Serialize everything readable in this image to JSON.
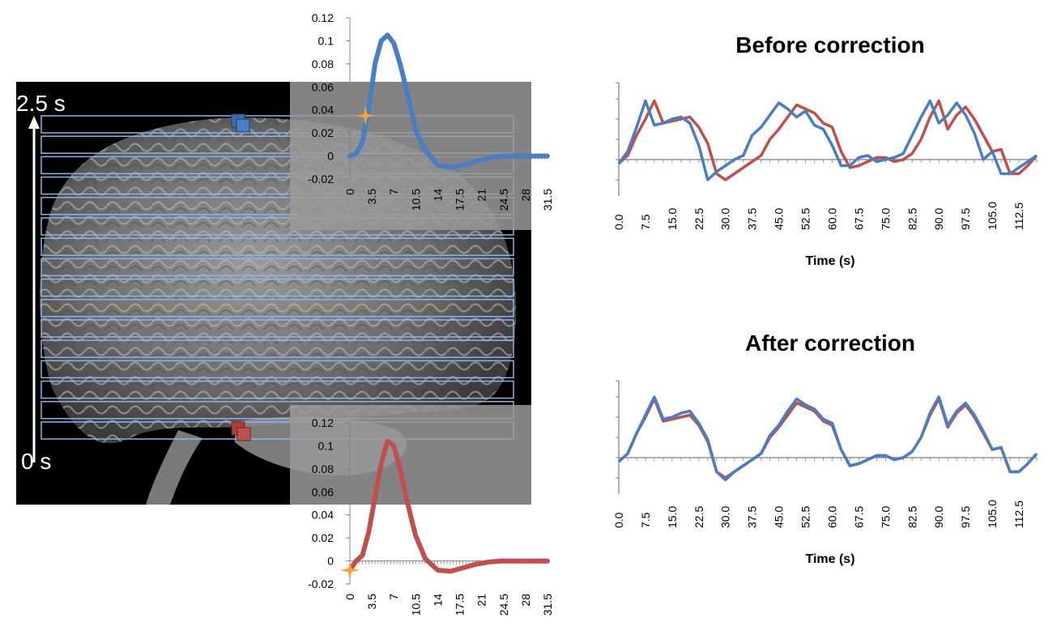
{
  "time_axis_labels": {
    "top": "2.5 s",
    "bottom": "0 s"
  },
  "colors": {
    "blue": "#4a7ec0",
    "red": "#c0504d",
    "star": "#f5a33a",
    "box_stroke": "#8fb3e8",
    "axis": "#808080"
  },
  "chart_data": [
    {
      "id": "hrf-top",
      "type": "line",
      "series": [
        {
          "color": "#4a7ec0",
          "x": [
            0,
            1,
            2,
            3,
            3.5,
            4,
            5,
            6,
            7,
            8,
            9,
            10,
            10.5,
            12,
            14,
            16,
            18,
            20,
            22,
            24,
            26,
            28,
            30,
            31.5
          ],
          "y": [
            0,
            0.002,
            0.012,
            0.04,
            0.06,
            0.08,
            0.1,
            0.105,
            0.098,
            0.08,
            0.058,
            0.035,
            0.022,
            0.005,
            -0.008,
            -0.01,
            -0.008,
            -0.005,
            -0.002,
            0,
            0,
            0,
            0,
            0
          ]
        }
      ],
      "yticks": [
        "0.12",
        "0.1",
        "0.08",
        "0.06",
        "0.04",
        "0.02",
        "0",
        "-0.02"
      ],
      "xticks": [
        "0",
        "3.5",
        "7",
        "10.5",
        "14",
        "17.5",
        "21",
        "24.5",
        "28",
        "31.5"
      ],
      "ylim": [
        -0.02,
        0.12
      ],
      "xlim": [
        0,
        31.5
      ],
      "marker": {
        "shape": "star",
        "x": 2.5,
        "y": 0.035
      }
    },
    {
      "id": "hrf-bottom",
      "type": "line",
      "series": [
        {
          "color": "#c0504d",
          "x": [
            0,
            1,
            2,
            3,
            4,
            5,
            6,
            7,
            8,
            9,
            10,
            10.5,
            12,
            14,
            16,
            18,
            20,
            22,
            24,
            26,
            28,
            30,
            31.5
          ],
          "y": [
            -0.008,
            0,
            0.005,
            0.025,
            0.055,
            0.085,
            0.104,
            0.1,
            0.08,
            0.055,
            0.032,
            0.022,
            0.002,
            -0.008,
            -0.009,
            -0.006,
            -0.003,
            -0.001,
            0,
            0,
            0,
            0,
            0
          ]
        }
      ],
      "yticks": [
        "0.12",
        "0.1",
        "0.08",
        "0.06",
        "0.04",
        "0.02",
        "0",
        "-0.02"
      ],
      "xticks": [
        "0",
        "3.5",
        "7",
        "10.5",
        "14",
        "17.5",
        "21",
        "24.5",
        "28",
        "31.5"
      ],
      "ylim": [
        -0.02,
        0.12
      ],
      "xlim": [
        0,
        31.5
      ],
      "marker": {
        "shape": "star",
        "x": 0,
        "y": -0.008
      }
    },
    {
      "id": "before",
      "type": "line",
      "title": "Before correction",
      "xlabel": "Time (s)",
      "categories": [
        "0.0",
        "7.5",
        "15.0",
        "22.5",
        "30.0",
        "37.5",
        "45.0",
        "52.5",
        "60.0",
        "67.5",
        "75.0",
        "82.5",
        "90.0",
        "97.5",
        "105.0",
        "112.5"
      ],
      "xlim": [
        0,
        117.5
      ],
      "ylim": [
        -1.8,
        3.8
      ],
      "series": [
        {
          "color": "#c0504d",
          "x": [
            0,
            2.5,
            5,
            7.5,
            10,
            12.5,
            15,
            17.5,
            20,
            22.5,
            25,
            27.5,
            30,
            32.5,
            35,
            37.5,
            40,
            42.5,
            45,
            47.5,
            50,
            52.5,
            55,
            57.5,
            60,
            62.5,
            65,
            67.5,
            70,
            72.5,
            75,
            77.5,
            80,
            82.5,
            85,
            87.5,
            90,
            92.5,
            95,
            97.5,
            100,
            102.5,
            105,
            107.5,
            110,
            112.5,
            115,
            117.5
          ],
          "y": [
            -0.2,
            0.2,
            1.2,
            2.0,
            2.9,
            1.8,
            1.9,
            2.0,
            2.1,
            1.6,
            0.8,
            -0.7,
            -1.0,
            -0.7,
            -0.4,
            -0.1,
            0.2,
            1.0,
            1.5,
            2.1,
            2.7,
            2.5,
            2.3,
            1.8,
            1.6,
            0.4,
            -0.4,
            -0.3,
            -0.1,
            0.1,
            0.1,
            -0.1,
            0.0,
            0.3,
            1.0,
            2.1,
            2.9,
            1.5,
            2.2,
            2.6,
            2.0,
            1.2,
            0.4,
            0.5,
            -0.7,
            -0.7,
            -0.3,
            0.2
          ]
        },
        {
          "color": "#4a7ec0",
          "x": [
            0,
            2.5,
            5,
            7.5,
            10,
            12.5,
            15,
            17.5,
            20,
            22.5,
            25,
            27.5,
            30,
            32.5,
            35,
            37.5,
            40,
            42.5,
            45,
            47.5,
            50,
            52.5,
            55,
            57.5,
            60,
            62.5,
            65,
            67.5,
            70,
            72.5,
            75,
            77.5,
            80,
            82.5,
            85,
            87.5,
            90,
            92.5,
            95,
            97.5,
            100,
            102.5,
            105,
            107.5,
            110,
            112.5,
            115,
            117.5
          ],
          "y": [
            -0.2,
            0.4,
            1.6,
            2.9,
            1.7,
            1.8,
            2.0,
            2.1,
            1.8,
            0.7,
            -1.0,
            -0.6,
            -0.3,
            0.0,
            0.2,
            1.2,
            1.6,
            2.2,
            2.8,
            2.5,
            2.1,
            2.4,
            1.7,
            1.5,
            0.7,
            -0.3,
            -0.3,
            0.1,
            0.2,
            -0.1,
            0.0,
            0.1,
            0.3,
            1.2,
            2.1,
            2.9,
            1.8,
            2.2,
            2.8,
            2.2,
            1.3,
            0.0,
            0.4,
            -0.7,
            -0.7,
            -0.4,
            -0.1,
            0.2
          ]
        }
      ]
    },
    {
      "id": "after",
      "type": "line",
      "title": "After correction",
      "xlabel": "Time (s)",
      "categories": [
        "0.0",
        "7.5",
        "15.0",
        "22.5",
        "30.0",
        "37.5",
        "45.0",
        "52.5",
        "60.0",
        "67.5",
        "75.0",
        "82.5",
        "90.0",
        "97.5",
        "105.0",
        "112.5"
      ],
      "xlim": [
        0,
        117.5
      ],
      "ylim": [
        -1.8,
        3.8
      ],
      "series": [
        {
          "color": "#c0504d",
          "x": [
            0,
            2.5,
            5,
            7.5,
            10,
            12.5,
            15,
            17.5,
            20,
            22.5,
            25,
            27.5,
            30,
            32.5,
            35,
            37.5,
            40,
            42.5,
            45,
            47.5,
            50,
            52.5,
            55,
            57.5,
            60,
            62.5,
            65,
            67.5,
            70,
            72.5,
            75,
            77.5,
            80,
            82.5,
            85,
            87.5,
            90,
            92.5,
            95,
            97.5,
            100,
            102.5,
            105,
            107.5,
            110,
            112.5,
            115,
            117.5
          ],
          "y": [
            -0.2,
            0.2,
            1.2,
            2.0,
            2.9,
            1.8,
            1.9,
            2.0,
            2.1,
            1.6,
            0.8,
            -0.7,
            -1.0,
            -0.7,
            -0.4,
            -0.1,
            0.2,
            1.0,
            1.5,
            2.1,
            2.7,
            2.5,
            2.3,
            1.8,
            1.6,
            0.4,
            -0.4,
            -0.3,
            -0.1,
            0.1,
            0.1,
            -0.1,
            0.0,
            0.3,
            1.0,
            2.1,
            2.9,
            1.5,
            2.2,
            2.6,
            2.0,
            1.2,
            0.4,
            0.5,
            -0.7,
            -0.7,
            -0.3,
            0.2
          ]
        },
        {
          "color": "#4a7ec0",
          "x": [
            0,
            2.5,
            5,
            7.5,
            10,
            12.5,
            15,
            17.5,
            20,
            22.5,
            25,
            27.5,
            30,
            32.5,
            35,
            37.5,
            40,
            42.5,
            45,
            47.5,
            50,
            52.5,
            55,
            57.5,
            60,
            62.5,
            65,
            67.5,
            70,
            72.5,
            75,
            77.5,
            80,
            82.5,
            85,
            87.5,
            90,
            92.5,
            95,
            97.5,
            100,
            102.5,
            105,
            107.5,
            110,
            112.5,
            115,
            117.5
          ],
          "y": [
            -0.2,
            0.2,
            1.2,
            2.1,
            3.0,
            1.9,
            2.0,
            2.2,
            2.3,
            1.7,
            0.9,
            -0.7,
            -1.1,
            -0.7,
            -0.4,
            -0.1,
            0.2,
            1.1,
            1.6,
            2.3,
            2.9,
            2.6,
            2.4,
            1.9,
            1.7,
            0.4,
            -0.4,
            -0.3,
            -0.1,
            0.1,
            0.1,
            -0.1,
            0.0,
            0.3,
            1.0,
            2.2,
            3.0,
            1.6,
            2.3,
            2.7,
            2.1,
            1.3,
            0.4,
            0.5,
            -0.7,
            -0.7,
            -0.3,
            0.2
          ]
        }
      ]
    }
  ]
}
